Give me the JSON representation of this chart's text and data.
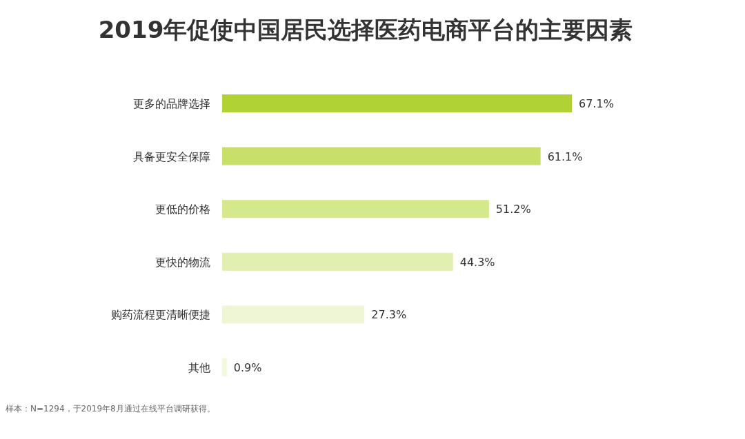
{
  "chart_data": {
    "type": "bar",
    "orientation": "horizontal",
    "title": "2019年促使中国居民选择医药电商平台的主要因素",
    "categories": [
      "更多的品牌选择",
      "具备更安全保障",
      "更低的价格",
      "更快的物流",
      "购药流程更清晰便捷",
      "其他"
    ],
    "values": [
      67.1,
      61.1,
      51.2,
      44.3,
      27.3,
      0.9
    ],
    "value_labels": [
      "67.1%",
      "61.1%",
      "51.2%",
      "44.3%",
      "27.3%",
      "0.9%"
    ],
    "colors": [
      "#b0d235",
      "#c8e06a",
      "#d5e88c",
      "#e1efb1",
      "#eef6d6",
      "#f1f8dc"
    ],
    "annotations": [
      "样本：N=1294，于2019年8月通过在线平台调研获得。"
    ]
  }
}
